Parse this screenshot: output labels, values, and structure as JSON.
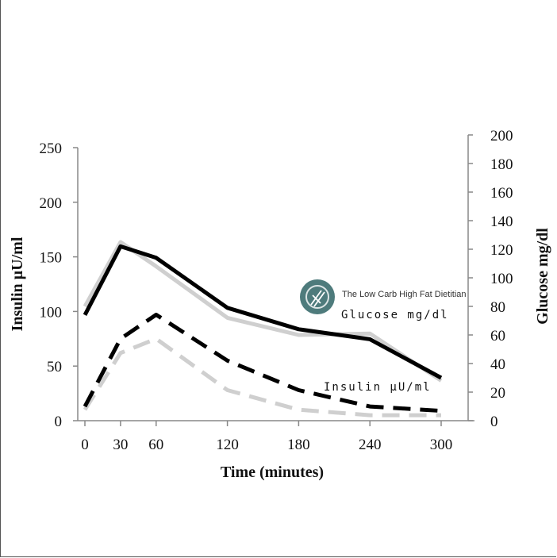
{
  "chart_data": {
    "type": "line",
    "x": [
      0,
      30,
      60,
      120,
      180,
      240,
      300
    ],
    "xticks": [
      0,
      30,
      60,
      120,
      180,
      240,
      300
    ],
    "xlabel": "Time (minutes)",
    "ylabel_left": "Insulin µU/ml",
    "ylabel_right": "Glucose mg/dl",
    "ylim_left": [
      0,
      250
    ],
    "ylim_right": [
      0,
      200
    ],
    "yticks_left": [
      0,
      50,
      100,
      150,
      200,
      250
    ],
    "yticks_right": [
      0,
      20,
      40,
      60,
      80,
      100,
      120,
      140,
      160,
      180,
      200
    ],
    "series": [
      {
        "axis": "right",
        "style": "solid",
        "color": "#cfcfcf",
        "values": [
          80,
          125,
          108,
          72,
          60,
          61,
          28
        ]
      },
      {
        "axis": "right",
        "style": "solid",
        "color": "#000000",
        "values": [
          74,
          122,
          114,
          79,
          64,
          57,
          30
        ]
      },
      {
        "axis": "left",
        "style": "dashed",
        "color": "#cfcfcf",
        "values": [
          10,
          62,
          75,
          28,
          10,
          5,
          5
        ]
      },
      {
        "axis": "left",
        "style": "dashed",
        "color": "#000000",
        "values": [
          13,
          75,
          97,
          55,
          28,
          13,
          9
        ]
      }
    ],
    "annotations": {
      "glucose_label": "Glucose mg/dl",
      "insulin_label": "Insulin µU/ml"
    }
  },
  "watermark": {
    "text": "The Low Carb High Fat Dietitian",
    "icon": "fork-knife-logo-icon",
    "color": "#4e7b7c"
  }
}
